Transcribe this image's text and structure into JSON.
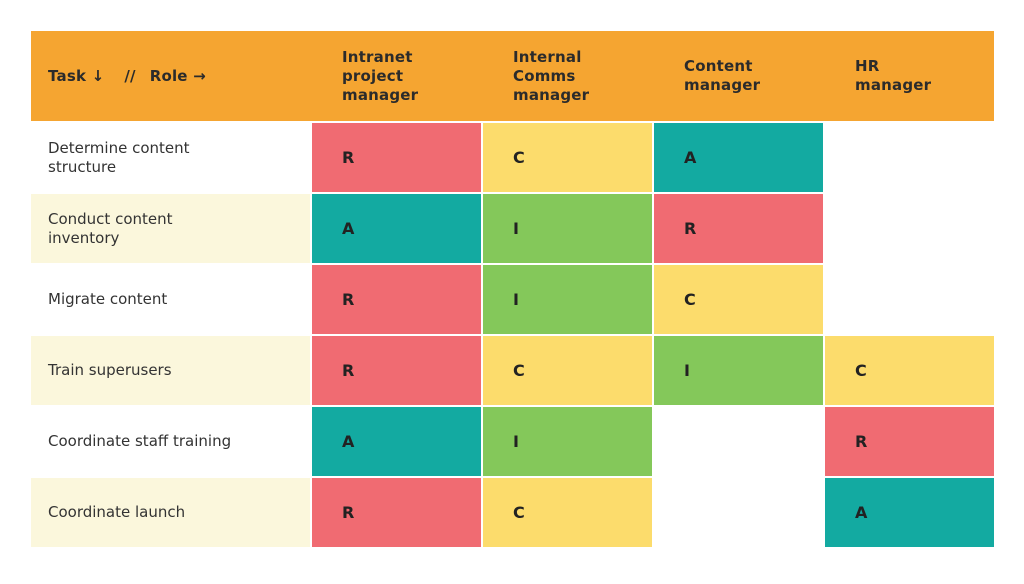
{
  "header": {
    "task_label": "Task",
    "task_arrow": "↓",
    "separator": "//",
    "role_label": "Role",
    "role_arrow": "→",
    "roles": [
      "Intranet\nproject\nmanager",
      "Internal\nComms\nmanager",
      "Content\nmanager",
      "HR\nmanager"
    ]
  },
  "rows": [
    {
      "task": "Determine content\nstructure",
      "cells": [
        "R",
        "C",
        "A",
        ""
      ]
    },
    {
      "task": "Conduct content\ninventory",
      "cells": [
        "A",
        "I",
        "R",
        ""
      ]
    },
    {
      "task": "Migrate content",
      "cells": [
        "R",
        "I",
        "C",
        ""
      ]
    },
    {
      "task": "Train superusers",
      "cells": [
        "R",
        "C",
        "I",
        "C"
      ]
    },
    {
      "task": "Coordinate staff training",
      "cells": [
        "A",
        "I",
        "",
        "R"
      ]
    },
    {
      "task": "Coordinate launch",
      "cells": [
        "R",
        "C",
        "",
        "A"
      ]
    }
  ],
  "colors": {
    "header": "#f5a531",
    "R": "#f06b72",
    "A": "#13aaa1",
    "C": "#fcdc6c",
    "I": "#84c85a",
    "row_alt": "#fbf7dc"
  }
}
